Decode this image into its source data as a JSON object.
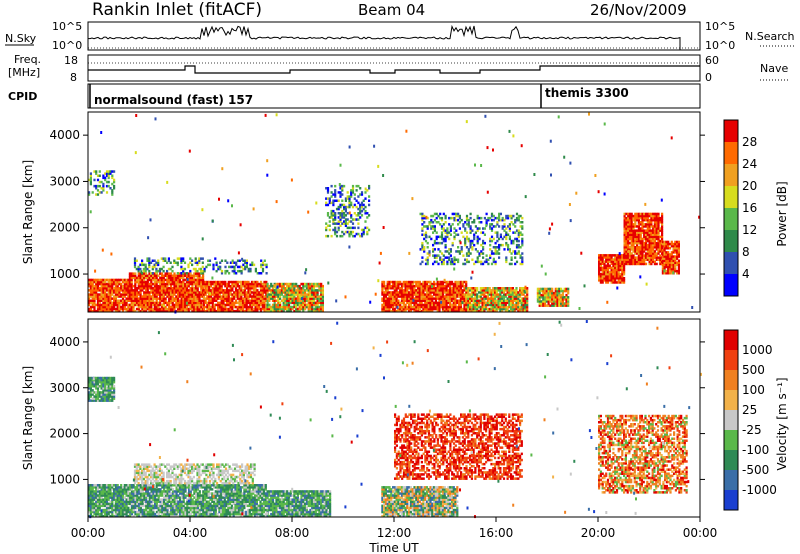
{
  "header": {
    "station": "Rankin Inlet (fitACF)",
    "beam": "Beam 04",
    "date": "26/Nov/2009"
  },
  "top_panels": {
    "nsky": {
      "label": "N.Sky",
      "ticks": [
        "10^5",
        "10^0"
      ],
      "right_ticks": [
        "10^5",
        "10^0"
      ],
      "right_label": "N.Search"
    },
    "freq": {
      "label_line1": "Freq.",
      "label_line2": "[MHz]",
      "ticks": [
        "18",
        "8"
      ],
      "right_ticks": [
        "60",
        "0"
      ],
      "right_label": "Nave"
    },
    "cpid": {
      "label": "CPID",
      "programs": [
        {
          "name": "normalsound (fast) 157",
          "start_hour": 0
        },
        {
          "name": "themis 3300",
          "start_hour": 18
        }
      ]
    }
  },
  "chart_data": [
    {
      "type": "heatmap",
      "name": "power",
      "xlabel": "",
      "ylabel": "Slant Range [km]",
      "xlim": [
        0,
        24
      ],
      "ylim": [
        180,
        4500
      ],
      "yticks": [
        1000,
        2000,
        3000,
        4000
      ],
      "colorbar": {
        "label": "Power [dB]",
        "ticks": [
          "4",
          "8",
          "12",
          "16",
          "20",
          "24",
          "28"
        ],
        "colors": [
          "#0000ff",
          "#3050b0",
          "#2f8a4a",
          "#5ab84a",
          "#d7dc1e",
          "#f0a020",
          "#ff6a00",
          "#e60000"
        ]
      },
      "regions": [
        {
          "t0": 0.0,
          "t1": 1.6,
          "r0": 180,
          "r1": 900,
          "level": "strong"
        },
        {
          "t0": 1.6,
          "t1": 4.5,
          "r0": 180,
          "r1": 1000,
          "level": "strong"
        },
        {
          "t0": 4.5,
          "t1": 7.0,
          "r0": 180,
          "r1": 850,
          "level": "strong"
        },
        {
          "t0": 7.0,
          "t1": 9.2,
          "r0": 180,
          "r1": 780,
          "level": "medium"
        },
        {
          "t0": 11.5,
          "t1": 14.8,
          "r0": 180,
          "r1": 850,
          "level": "strong"
        },
        {
          "t0": 14.8,
          "t1": 17.2,
          "r0": 180,
          "r1": 700,
          "level": "medium"
        },
        {
          "t0": 17.6,
          "t1": 18.8,
          "r0": 300,
          "r1": 700,
          "level": "medium"
        },
        {
          "t0": 20.0,
          "t1": 21.0,
          "r0": 800,
          "r1": 1400,
          "level": "strong"
        },
        {
          "t0": 21.0,
          "t1": 22.5,
          "r0": 1200,
          "r1": 2300,
          "level": "strong"
        },
        {
          "t0": 22.5,
          "t1": 23.2,
          "r0": 1000,
          "r1": 1700,
          "level": "strong"
        },
        {
          "t0": 0.0,
          "t1": 1.0,
          "r0": 2700,
          "r1": 3200,
          "level": "weak"
        },
        {
          "t0": 1.8,
          "t1": 5.0,
          "r0": 1000,
          "r1": 1350,
          "level": "weak"
        },
        {
          "t0": 5.0,
          "t1": 7.0,
          "r0": 1000,
          "r1": 1300,
          "level": "weak"
        },
        {
          "t0": 13.0,
          "t1": 17.0,
          "r0": 1200,
          "r1": 2300,
          "level": "weak"
        },
        {
          "t0": 9.3,
          "t1": 11.0,
          "r0": 1800,
          "r1": 2900,
          "level": "weak"
        }
      ]
    },
    {
      "type": "heatmap",
      "name": "velocity",
      "xlabel": "Time UT",
      "ylabel": "Slant Range [km]",
      "xlim": [
        0,
        24
      ],
      "ylim": [
        180,
        4500
      ],
      "xticks": [
        "00:00",
        "04:00",
        "08:00",
        "12:00",
        "16:00",
        "20:00",
        "00:00"
      ],
      "yticks": [
        1000,
        2000,
        3000,
        4000
      ],
      "colorbar": {
        "label": "Velocity [m s⁻¹]",
        "ticks": [
          "1000",
          "500",
          "100",
          "25",
          "-25",
          "-100",
          "-500",
          "-1000"
        ],
        "colors": [
          "#1a3fd0",
          "#3a6ea8",
          "#2f8a55",
          "#5ab84a",
          "#c8c8c8",
          "#f2b24a",
          "#f08020",
          "#f04010",
          "#e00000"
        ]
      },
      "regions": [
        {
          "t0": 0.0,
          "t1": 7.0,
          "r0": 180,
          "r1": 900,
          "level": "green"
        },
        {
          "t0": 1.8,
          "t1": 6.5,
          "r0": 900,
          "r1": 1350,
          "level": "grey"
        },
        {
          "t0": 7.0,
          "t1": 9.5,
          "r0": 180,
          "r1": 750,
          "level": "green"
        },
        {
          "t0": 11.5,
          "t1": 14.5,
          "r0": 180,
          "r1": 850,
          "level": "mixed"
        },
        {
          "t0": 12.0,
          "t1": 17.0,
          "r0": 1000,
          "r1": 2400,
          "level": "red"
        },
        {
          "t0": 20.0,
          "t1": 23.5,
          "r0": 700,
          "r1": 2400,
          "level": "orange"
        },
        {
          "t0": 0.0,
          "t1": 1.0,
          "r0": 2700,
          "r1": 3200,
          "level": "green"
        }
      ]
    }
  ]
}
